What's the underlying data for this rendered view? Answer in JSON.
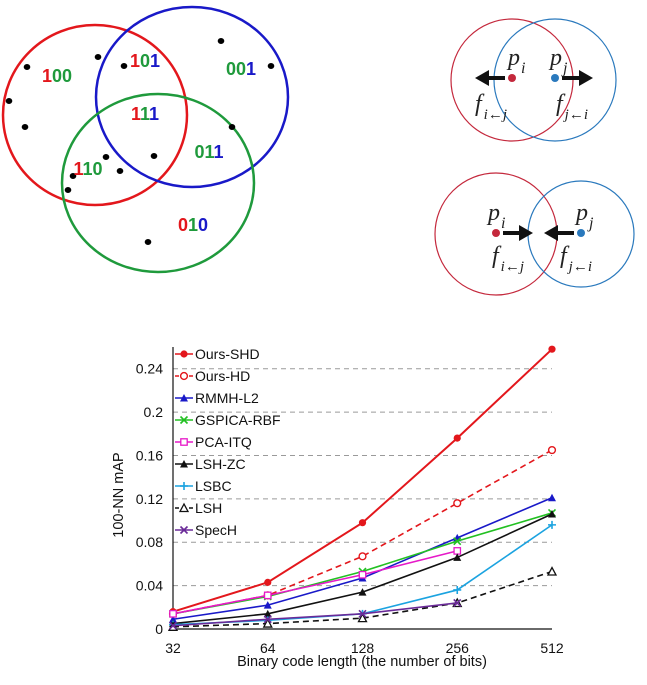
{
  "venn": {
    "codes": [
      {
        "digits": [
          "1",
          "0",
          "0"
        ],
        "colors": [
          "#e3171c",
          "#1f9a3c",
          "#1f9a3c"
        ]
      },
      {
        "digits": [
          "1",
          "0",
          "1"
        ],
        "colors": [
          "#e3171c",
          "#1f9a3c",
          "#1919c8"
        ]
      },
      {
        "digits": [
          "0",
          "0",
          "1"
        ],
        "colors": [
          "#1f9a3c",
          "#1f9a3c",
          "#1919c8"
        ]
      },
      {
        "digits": [
          "1",
          "1",
          "1"
        ],
        "colors": [
          "#e3171c",
          "#1f9a3c",
          "#1919c8"
        ]
      },
      {
        "digits": [
          "1",
          "1",
          "0"
        ],
        "colors": [
          "#e3171c",
          "#1f9a3c",
          "#1f9a3c"
        ]
      },
      {
        "digits": [
          "0",
          "1",
          "1"
        ],
        "colors": [
          "#1f9a3c",
          "#1f9a3c",
          "#1919c8"
        ]
      },
      {
        "digits": [
          "0",
          "1",
          "0"
        ],
        "colors": [
          "#e3171c",
          "#1f9a3c",
          "#1919c8"
        ]
      }
    ],
    "circle_colors": {
      "red": "#e3171c",
      "blue": "#1919c8",
      "green": "#1f9a3c"
    }
  },
  "forces": {
    "top": {
      "pi": "p",
      "pi_sub": "i",
      "pj": "p",
      "pj_sub": "j",
      "fi": "f",
      "fi_sub": "i←j",
      "fj": "f",
      "fj_sub": "j←i"
    },
    "bottom": {
      "pi": "p",
      "pi_sub": "i",
      "pj": "p",
      "pj_sub": "j",
      "fi": "f",
      "fi_sub": "i←j",
      "fj": "f",
      "fj_sub": "j←i"
    },
    "colors": {
      "i": "#c4283c",
      "j": "#2a79bd"
    }
  },
  "chart_data": {
    "type": "line",
    "x": [
      32,
      64,
      128,
      256,
      512
    ],
    "x_tick_labels": [
      "32",
      "64",
      "128",
      "256",
      "512"
    ],
    "x_scale": "log2",
    "xlabel": "Binary code length (the number of bits)",
    "ylabel": "100-NN mAP",
    "ylim": [
      0,
      0.26
    ],
    "y_ticks": [
      0,
      0.04,
      0.08,
      0.12,
      0.16,
      0.2,
      0.24
    ],
    "y_tick_labels": [
      "0",
      "0.04",
      "0.08",
      "0.12",
      "0.16",
      "0.2",
      "0.24"
    ],
    "grid": "horizontal dashed",
    "legend": "top-left",
    "series": [
      {
        "name": "Ours-SHD",
        "color": "#e3171c",
        "marker": "filled-circle",
        "dash": "solid",
        "values": [
          0.016,
          0.043,
          0.098,
          0.176,
          0.258
        ]
      },
      {
        "name": "Ours-HD",
        "color": "#e3171c",
        "marker": "open-circle",
        "dash": "dashed",
        "values": [
          0.014,
          0.031,
          0.067,
          0.116,
          0.165
        ]
      },
      {
        "name": "RMMH-L2",
        "color": "#1919c8",
        "marker": "filled-triangle",
        "dash": "solid",
        "values": [
          0.009,
          0.022,
          0.047,
          0.084,
          0.121
        ]
      },
      {
        "name": "GSPICA-RBF",
        "color": "#22c022",
        "marker": "x",
        "dash": "solid",
        "values": [
          0.014,
          0.03,
          0.053,
          0.081,
          0.107
        ]
      },
      {
        "name": "PCA-ITQ",
        "color": "#e619c8",
        "marker": "open-square",
        "dash": "solid",
        "values": [
          0.014,
          0.031,
          0.05,
          0.072,
          null
        ]
      },
      {
        "name": "LSH-ZC",
        "color": "#111111",
        "marker": "filled-triangle",
        "dash": "solid",
        "values": [
          0.005,
          0.014,
          0.034,
          0.066,
          0.106
        ]
      },
      {
        "name": "LSBC",
        "color": "#1ba3e0",
        "marker": "plus",
        "dash": "solid",
        "values": [
          0.004,
          0.008,
          0.014,
          0.036,
          0.096
        ]
      },
      {
        "name": "LSH",
        "color": "#111111",
        "marker": "open-triangle",
        "dash": "dashed",
        "values": [
          0.002,
          0.005,
          0.01,
          0.024,
          0.053
        ]
      },
      {
        "name": "SpecH",
        "color": "#6a2a98",
        "marker": "x",
        "dash": "solid",
        "values": [
          0.003,
          0.009,
          0.014,
          0.024,
          null
        ]
      }
    ]
  }
}
